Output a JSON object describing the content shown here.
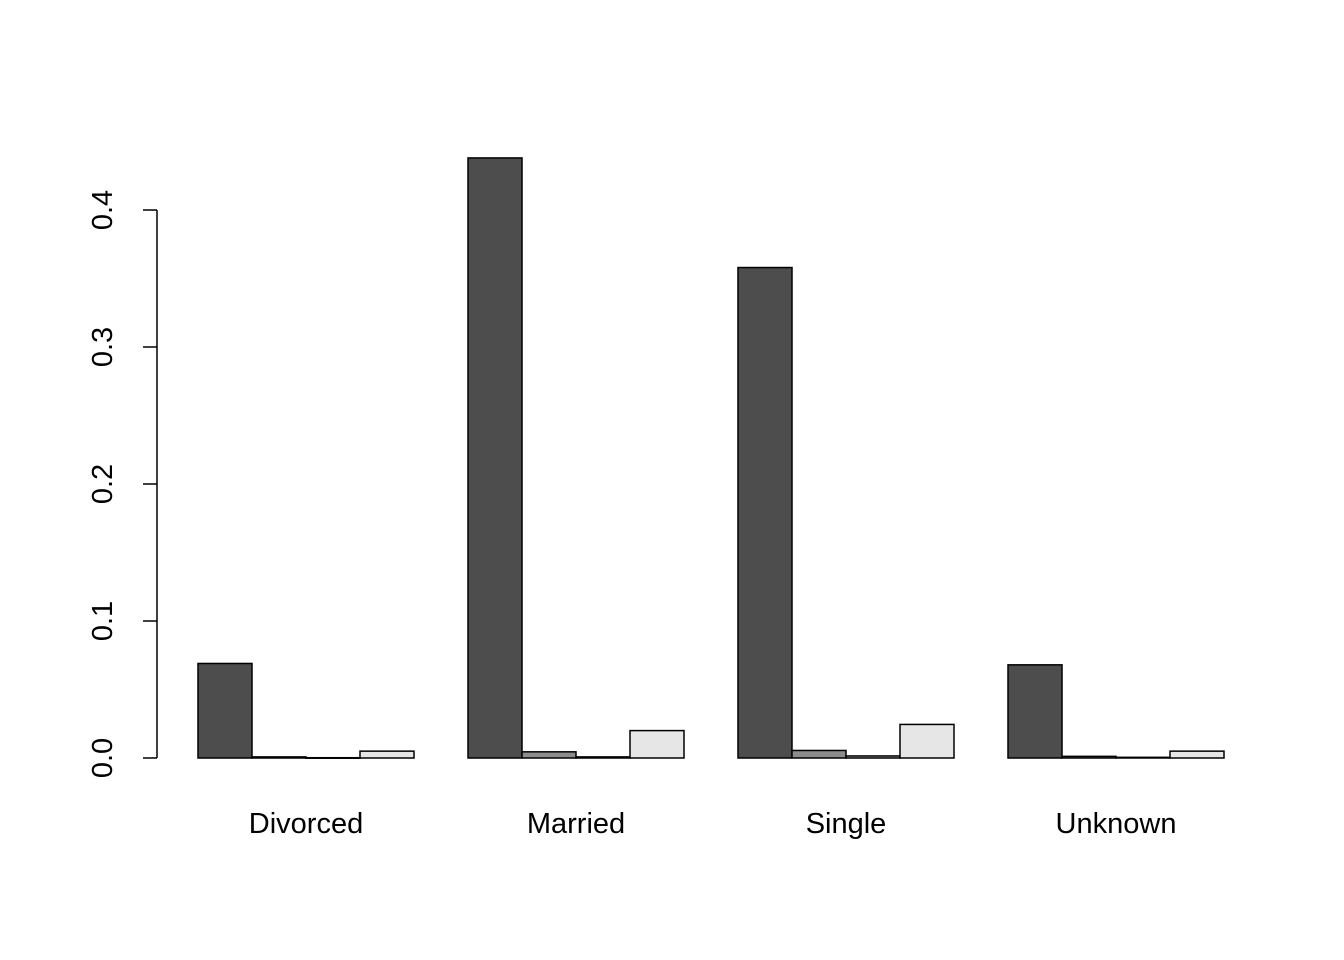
{
  "chart_data": {
    "type": "bar",
    "categories": [
      "Divorced",
      "Married",
      "Single",
      "Unknown"
    ],
    "series": [
      {
        "values": [
          0.069,
          0.438,
          0.358,
          0.068
        ],
        "color": "#4d4d4d"
      },
      {
        "values": [
          0.0008,
          0.0045,
          0.0055,
          0.0012
        ],
        "color": "#8c8c8c"
      },
      {
        "values": [
          0.0002,
          0.0008,
          0.0015,
          0.0005
        ],
        "color": "#b7b7b7"
      },
      {
        "values": [
          0.005,
          0.02,
          0.0245,
          0.005
        ],
        "color": "#e6e6e6"
      }
    ],
    "yticks": [
      "0.0",
      "0.1",
      "0.2",
      "0.3",
      "0.4"
    ],
    "ylim": [
      0,
      0.4
    ],
    "grid": false,
    "legend": "none",
    "title": "",
    "xlabel": "",
    "ylabel": ""
  }
}
